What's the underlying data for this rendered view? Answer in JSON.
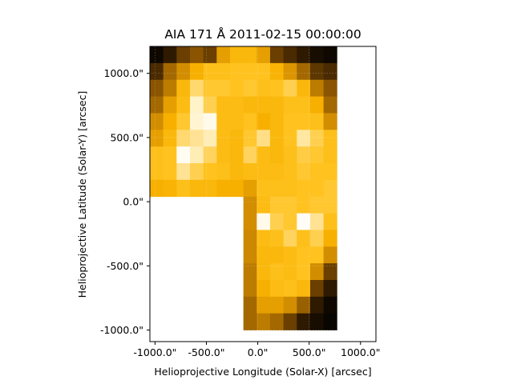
{
  "chart_data": {
    "type": "heatmap",
    "title": "AIA 171 Å 2011-02-15 00:00:00",
    "xlabel": "Helioprojective Longitude (Solar-X) [arcsec]",
    "ylabel": "Helioprojective Latitude (Solar-Y) [arcsec]",
    "x_ticks": [
      "-1000.0\"",
      "-500.0\"",
      "0.0\"",
      "500.0\"",
      "1000.0\""
    ],
    "y_ticks": [
      "1000.0\"",
      "500.0\"",
      "0.0\"",
      "-500.0\"",
      "-1000.0\""
    ],
    "x_tick_values": [
      -1000,
      -500,
      0,
      500,
      1000
    ],
    "y_tick_values": [
      1000,
      500,
      0,
      -500,
      -1000
    ],
    "xlim": [
      -1050,
      1150
    ],
    "ylim": [
      -1090,
      1210
    ],
    "grid": true,
    "colormap": "sdoaia171",
    "colormap_stops": [
      "#000000",
      "#3a2000",
      "#8a5400",
      "#c98600",
      "#f7b000",
      "#ffc320",
      "#ffd870",
      "#fff2c8",
      "#ffffff"
    ],
    "grid_origin": [
      -1050,
      1210
    ],
    "cell_size": 130,
    "cells": [
      [
        0.03,
        0.1,
        0.2,
        0.25,
        0.2,
        0.45,
        0.55,
        0.55,
        0.45,
        0.2,
        0.15,
        0.1,
        0.05,
        0.03
      ],
      [
        0.15,
        0.3,
        0.4,
        0.5,
        0.6,
        0.6,
        0.62,
        0.62,
        0.62,
        0.52,
        0.42,
        0.3,
        0.18,
        0.15
      ],
      [
        0.25,
        0.35,
        0.55,
        0.75,
        0.65,
        0.65,
        0.62,
        0.65,
        0.6,
        0.62,
        0.7,
        0.55,
        0.35,
        0.25
      ],
      [
        0.3,
        0.45,
        0.58,
        0.88,
        0.7,
        0.58,
        0.58,
        0.55,
        0.55,
        0.55,
        0.6,
        0.6,
        0.5,
        0.3
      ],
      [
        0.4,
        0.5,
        0.65,
        0.9,
        0.95,
        0.58,
        0.58,
        0.62,
        0.5,
        0.55,
        0.62,
        0.62,
        0.6,
        0.4
      ],
      [
        0.45,
        0.55,
        0.75,
        0.8,
        0.85,
        0.58,
        0.55,
        0.65,
        0.78,
        0.55,
        0.62,
        0.82,
        0.7,
        0.6
      ],
      [
        0.6,
        0.62,
        0.97,
        0.85,
        0.72,
        0.58,
        0.55,
        0.72,
        0.58,
        0.55,
        0.6,
        0.68,
        0.65,
        0.6
      ],
      [
        0.6,
        0.62,
        0.8,
        0.7,
        0.62,
        0.6,
        0.55,
        0.58,
        0.58,
        0.58,
        0.6,
        0.65,
        0.62,
        0.62
      ],
      [
        0.5,
        0.52,
        0.6,
        0.55,
        0.55,
        0.5,
        0.5,
        0.45,
        0.6,
        0.6,
        0.6,
        0.62,
        0.62,
        0.65
      ],
      [
        null,
        null,
        null,
        null,
        null,
        null,
        null,
        0.4,
        0.58,
        0.65,
        0.65,
        0.62,
        0.65,
        0.65
      ],
      [
        null,
        null,
        null,
        null,
        null,
        null,
        null,
        0.4,
        0.95,
        0.7,
        0.65,
        0.98,
        0.8,
        0.6
      ],
      [
        null,
        null,
        null,
        null,
        null,
        null,
        null,
        0.38,
        0.58,
        0.6,
        0.72,
        0.6,
        0.7,
        0.5
      ],
      [
        null,
        null,
        null,
        null,
        null,
        null,
        null,
        0.38,
        0.55,
        0.55,
        0.58,
        0.62,
        0.62,
        0.4
      ],
      [
        null,
        null,
        null,
        null,
        null,
        null,
        null,
        0.35,
        0.55,
        0.6,
        0.58,
        0.62,
        0.4,
        0.2
      ],
      [
        null,
        null,
        null,
        null,
        null,
        null,
        null,
        0.35,
        0.5,
        0.58,
        0.6,
        0.55,
        0.2,
        0.1
      ],
      [
        null,
        null,
        null,
        null,
        null,
        null,
        null,
        0.3,
        0.45,
        0.45,
        0.4,
        0.28,
        0.1,
        0.03
      ],
      [
        null,
        null,
        null,
        null,
        null,
        null,
        null,
        0.3,
        0.35,
        0.3,
        0.2,
        0.1,
        0.05,
        0.02
      ]
    ]
  }
}
